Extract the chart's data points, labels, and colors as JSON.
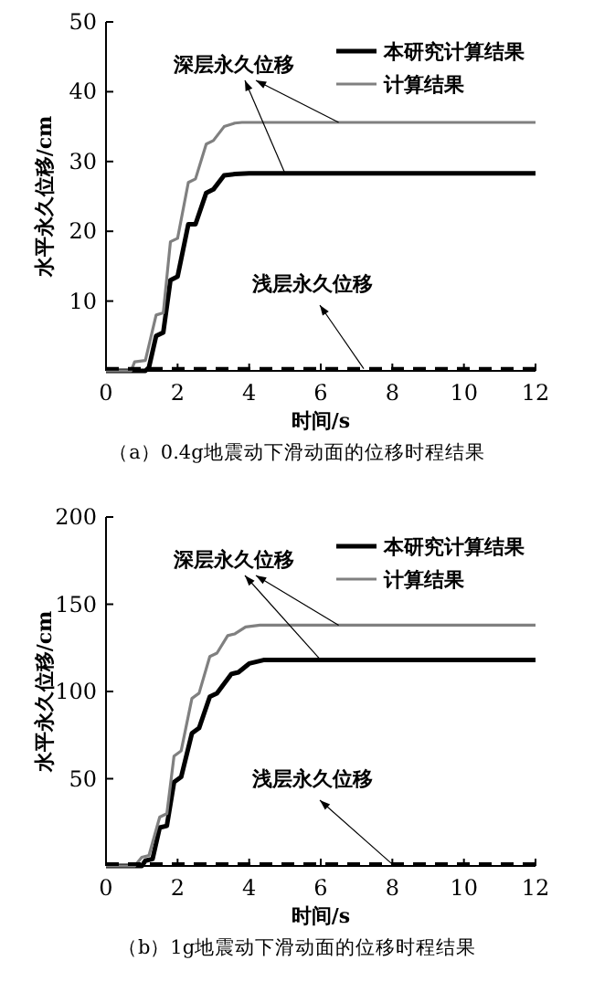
{
  "chart_data": [
    {
      "type": "line",
      "xlabel": "时间/s",
      "ylabel": "水平永久位移/cm",
      "annotations": [
        {
          "text": "深层永久位移",
          "x": 5,
          "y": 28.3
        },
        {
          "text": "浅层永久位移",
          "x": 7.2,
          "y": 0.3
        },
        "（a）0.4g地震动下滑动面的位移时程结果"
      ],
      "xlim": [
        0,
        12
      ],
      "ylim": [
        0,
        50
      ],
      "xticks": [
        0,
        2,
        4,
        6,
        8,
        10,
        12
      ],
      "yticks": [
        10,
        20,
        30,
        40,
        50
      ],
      "legend": "top right",
      "grid": false,
      "marker": "none",
      "series": [
        {
          "name": "本研究计算结果",
          "color": "#000000",
          "line_style": "solid",
          "x": [
            0,
            1.1,
            1.2,
            1.4,
            1.6,
            1.8,
            2.0,
            2.3,
            2.5,
            2.8,
            3.0,
            3.3,
            3.6,
            4.0,
            12
          ],
          "values": [
            0,
            0,
            0.5,
            5,
            5.5,
            13,
            13.5,
            21,
            21,
            25.5,
            26,
            28,
            28.2,
            28.3,
            28.3
          ]
        },
        {
          "name": "计算结果",
          "color": "#808080",
          "line_style": "solid",
          "x": [
            0,
            0.7,
            0.8,
            1.1,
            1.4,
            1.6,
            1.8,
            2.0,
            2.3,
            2.5,
            2.8,
            3.0,
            3.3,
            3.6,
            3.8,
            12
          ],
          "values": [
            0,
            0,
            1.3,
            1.5,
            8,
            8.3,
            18.5,
            19,
            27,
            27.5,
            32.5,
            33,
            35,
            35.5,
            35.6,
            35.6
          ]
        },
        {
          "color": "#000000",
          "line_style": "dashed",
          "x": [
            0,
            12
          ],
          "values": [
            0.3,
            0.3
          ]
        }
      ]
    },
    {
      "type": "line",
      "xlabel": "时间/s",
      "ylabel": "水平永久位移/cm",
      "annotations": [
        {
          "text": "深层永久位移",
          "x": 6,
          "y": 118
        },
        {
          "text": "浅层永久位移",
          "x": 8,
          "y": 1
        },
        "（b）1g地震动下滑动面的位移时程结果"
      ],
      "xlim": [
        0,
        12
      ],
      "ylim": [
        0,
        200
      ],
      "xticks": [
        0,
        2,
        4,
        6,
        8,
        10,
        12
      ],
      "yticks": [
        50,
        100,
        150,
        200
      ],
      "legend": "top right",
      "grid": false,
      "marker": "none",
      "series": [
        {
          "name": "本研究计算结果",
          "color": "#000000",
          "line_style": "solid",
          "x": [
            0,
            1.0,
            1.1,
            1.3,
            1.5,
            1.7,
            1.9,
            2.1,
            2.4,
            2.6,
            2.9,
            3.1,
            3.5,
            3.7,
            4.0,
            4.4,
            12
          ],
          "values": [
            0,
            0,
            3,
            4,
            22,
            23,
            48,
            51,
            76,
            79,
            97,
            99,
            110,
            111,
            116,
            118,
            118
          ]
        },
        {
          "name": "计算结果",
          "color": "#808080",
          "line_style": "solid",
          "x": [
            0,
            0.8,
            1.0,
            1.2,
            1.5,
            1.7,
            1.9,
            2.1,
            2.4,
            2.6,
            2.9,
            3.1,
            3.4,
            3.6,
            3.9,
            4.3,
            12
          ],
          "values": [
            0,
            0,
            5,
            6,
            28,
            30,
            63,
            66,
            96,
            99,
            120,
            122,
            132,
            133,
            137,
            138,
            138
          ]
        },
        {
          "color": "#000000",
          "line_style": "dashed",
          "x": [
            0,
            12
          ],
          "values": [
            1,
            1
          ]
        }
      ]
    }
  ]
}
